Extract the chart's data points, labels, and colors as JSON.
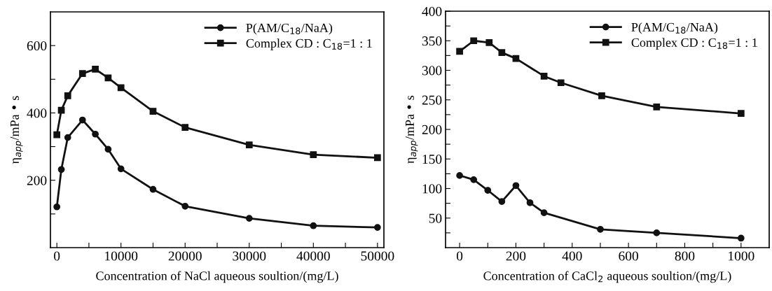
{
  "chart_data": [
    {
      "type": "line",
      "xlabel": "Concentration of NaCl aqueous soultion/(mg/L)",
      "ylabel": "η$_{app}$/mPa • s",
      "xlim": [
        -1000,
        51000
      ],
      "ylim": [
        0,
        700
      ],
      "xticks": [
        0,
        {
          "value": 5000,
          "label": null
        },
        10000,
        {
          "value": 15000,
          "label": null
        },
        20000,
        {
          "value": 25000,
          "label": null
        },
        30000,
        {
          "value": 35000,
          "label": null
        },
        40000,
        {
          "value": 45000,
          "label": null
        },
        50000
      ],
      "yticks": [
        {
          "value": 100,
          "label": null
        },
        200,
        {
          "value": 300,
          "label": null
        },
        400,
        {
          "value": 500,
          "label": null
        },
        600
      ],
      "grid": false,
      "legend": "top right",
      "line_style": "solid",
      "series": [
        {
          "name": "P(AM/C$_{18}$/NaA)",
          "color": "#111111",
          "marker": "circle",
          "x": [
            0,
            700,
            1700,
            4000,
            6000,
            8000,
            10000,
            15000,
            20000,
            30000,
            40000,
            50000
          ],
          "values": [
            121,
            232,
            327,
            379,
            337,
            292,
            234,
            173,
            123,
            87,
            65,
            60
          ]
        },
        {
          "name": "Complex CD : C$_{18}$=1 : 1",
          "color": "#111111",
          "marker": "square",
          "x": [
            0,
            700,
            1700,
            4000,
            6000,
            8000,
            10000,
            15000,
            20000,
            30000,
            40000,
            50000
          ],
          "values": [
            335,
            408,
            451,
            517,
            530,
            504,
            475,
            405,
            357,
            305,
            276,
            267
          ]
        }
      ]
    },
    {
      "type": "line",
      "xlabel": "Concentration of CaCl$_{2}$ aqueous soultion/(mg/L)",
      "ylabel": "η$_{app}$/mPa • s",
      "xlim": [
        -50,
        1100
      ],
      "ylim": [
        0,
        400
      ],
      "xticks": [
        0,
        {
          "value": 100,
          "label": null
        },
        200,
        {
          "value": 300,
          "label": null
        },
        400,
        {
          "value": 500,
          "label": null
        },
        600,
        {
          "value": 700,
          "label": null
        },
        800,
        {
          "value": 900,
          "label": null
        },
        1000
      ],
      "yticks": [
        {
          "value": 25,
          "label": null
        },
        50,
        {
          "value": 75,
          "label": null
        },
        100,
        {
          "value": 125,
          "label": null
        },
        150,
        {
          "value": 175,
          "label": null
        },
        200,
        {
          "value": 225,
          "label": null
        },
        250,
        {
          "value": 275,
          "label": null
        },
        300,
        {
          "value": 325,
          "label": null
        },
        350,
        {
          "value": 375,
          "label": null
        },
        400
      ],
      "grid": false,
      "legend": "top right",
      "line_style": "solid",
      "series": [
        {
          "name": "P(AM/C$_{18}$/NaA)",
          "color": "#111111",
          "marker": "circle",
          "x": [
            0,
            50,
            100,
            150,
            200,
            250,
            300,
            500,
            700,
            1000
          ],
          "values": [
            122,
            115,
            97,
            78,
            105,
            76,
            59,
            31,
            25,
            16
          ]
        },
        {
          "name": "Complex CD : C$_{18}$=1 : 1",
          "color": "#111111",
          "marker": "square",
          "x": [
            0,
            50,
            105,
            150,
            200,
            300,
            360,
            505,
            700,
            1000
          ],
          "values": [
            332,
            350,
            347,
            330,
            320,
            290,
            279,
            257,
            238,
            227
          ]
        }
      ]
    }
  ]
}
